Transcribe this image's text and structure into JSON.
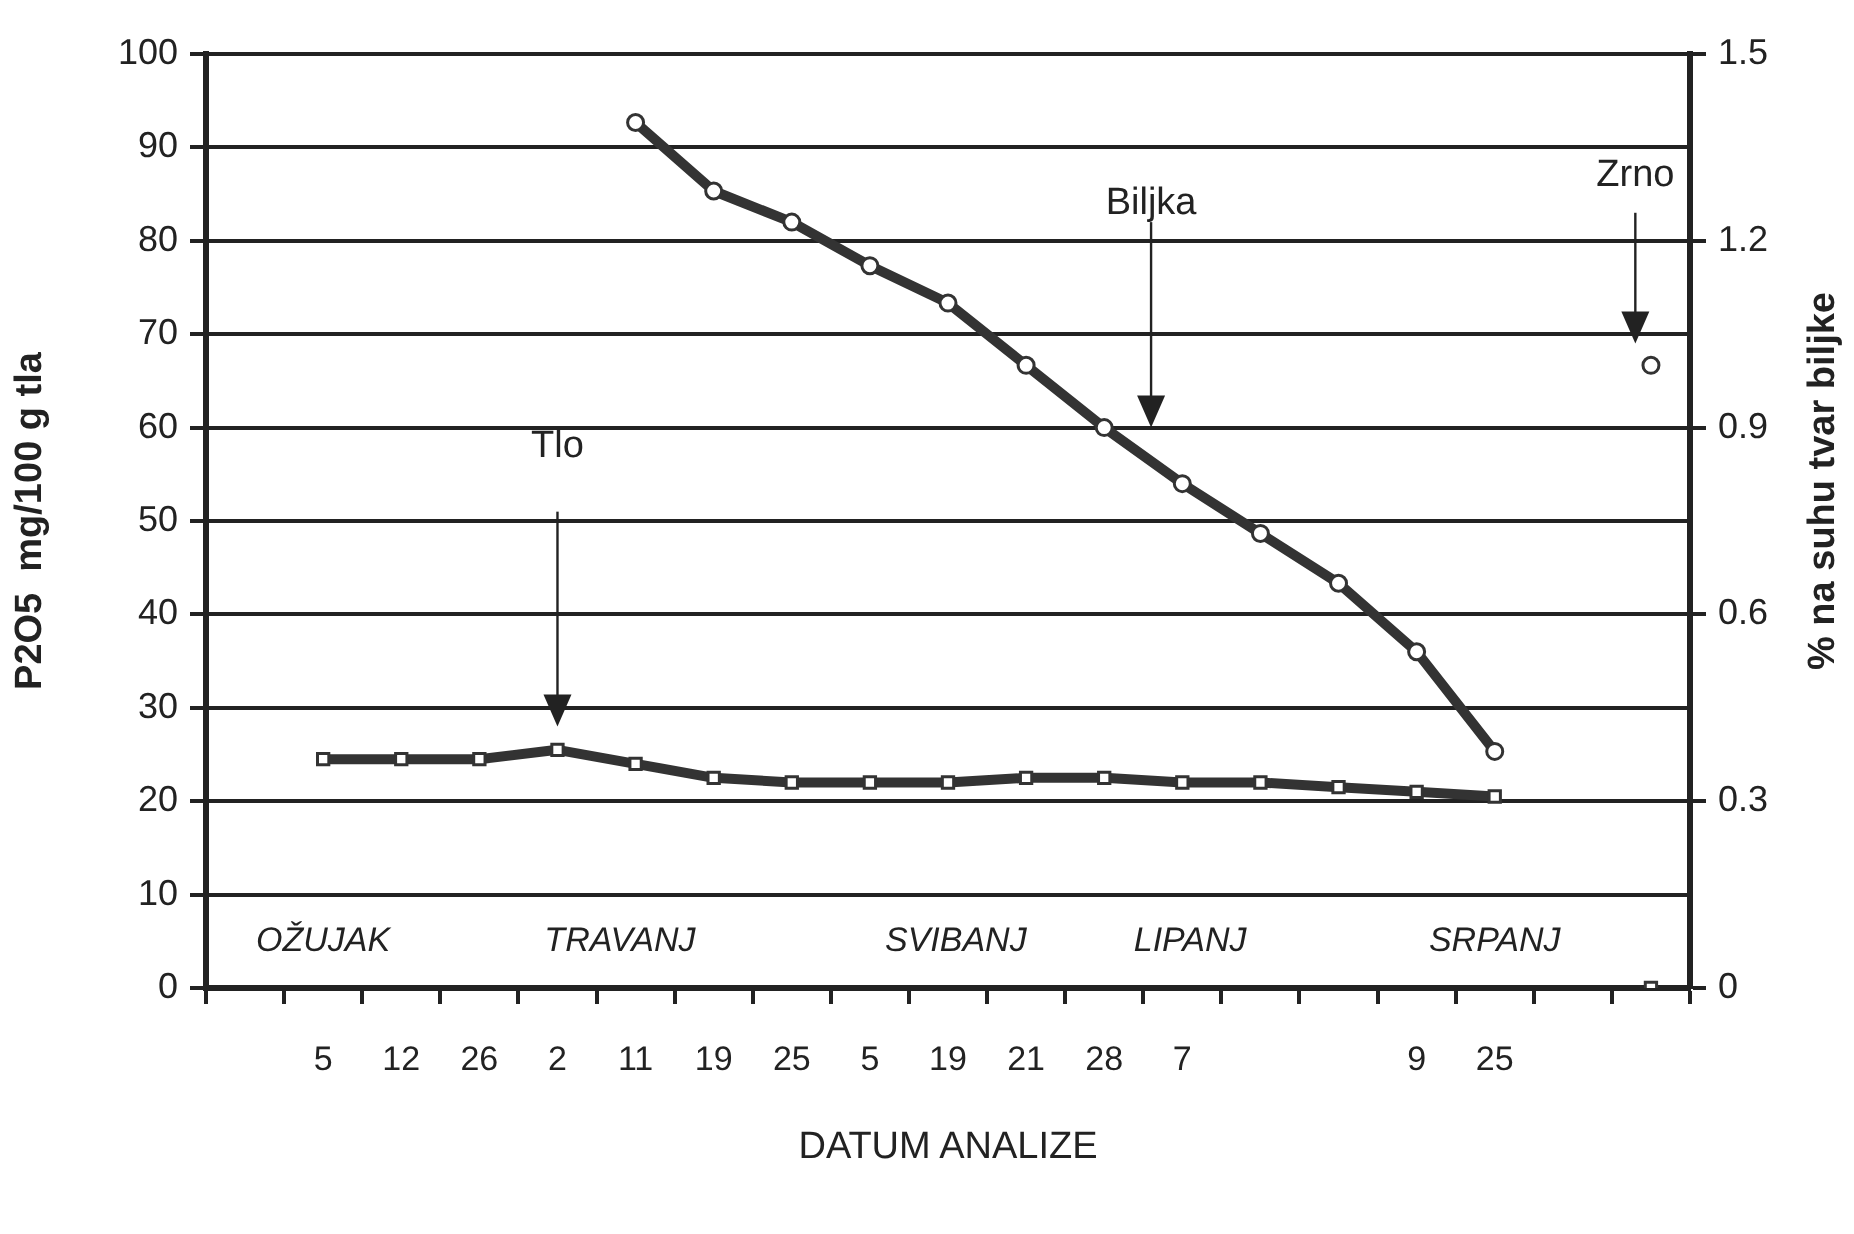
{
  "chart_data": {
    "type": "line",
    "xlabel": "DATUM ANALIZE",
    "ylabel": "P2O5  mg/100 g tla",
    "y2label": "% na suhu tvar biljke",
    "categories": [
      null,
      "5",
      "12",
      "26",
      "2",
      "11",
      "19",
      "25",
      "5",
      "19",
      "21",
      "28",
      "7",
      null,
      null,
      "9",
      "25",
      null,
      null
    ],
    "series": [
      {
        "color": "#333333",
        "marker": "square",
        "values": [
          null,
          24.5,
          24.5,
          24.5,
          25.5,
          24,
          22.5,
          22,
          22,
          22,
          22.5,
          22.5,
          22,
          22,
          21.5,
          21,
          20.5,
          null,
          0
        ]
      },
      {
        "color": "#333333",
        "marker": "circle",
        "axis": "y2",
        "values": [
          null,
          null,
          null,
          null,
          null,
          1.39,
          1.28,
          1.23,
          1.16,
          1.1,
          1.0,
          0.9,
          0.81,
          0.73,
          0.65,
          0.54,
          0.38,
          null,
          null
        ]
      },
      {
        "type": "scatter",
        "color": "#333333",
        "marker": "circle",
        "axis": "y2",
        "values": [
          null,
          null,
          null,
          null,
          null,
          null,
          null,
          null,
          null,
          null,
          null,
          null,
          null,
          null,
          null,
          null,
          null,
          null,
          1.0
        ]
      }
    ],
    "ylim": [
      0,
      100
    ],
    "yticks": [
      0,
      10,
      20,
      30,
      40,
      50,
      60,
      70,
      80,
      90,
      100
    ],
    "y2lim": [
      0,
      1.5
    ],
    "y2ticks": [
      0,
      0.3,
      0.6,
      0.9,
      1.2,
      1.5
    ],
    "grid": "y",
    "legend": false,
    "annotations": [
      "OŽUJAK",
      "TRAVANJ",
      "SVIBANJ",
      "LIPANJ",
      "SRPANJ",
      "Tlo",
      "Biljka",
      "Zrno"
    ]
  }
}
